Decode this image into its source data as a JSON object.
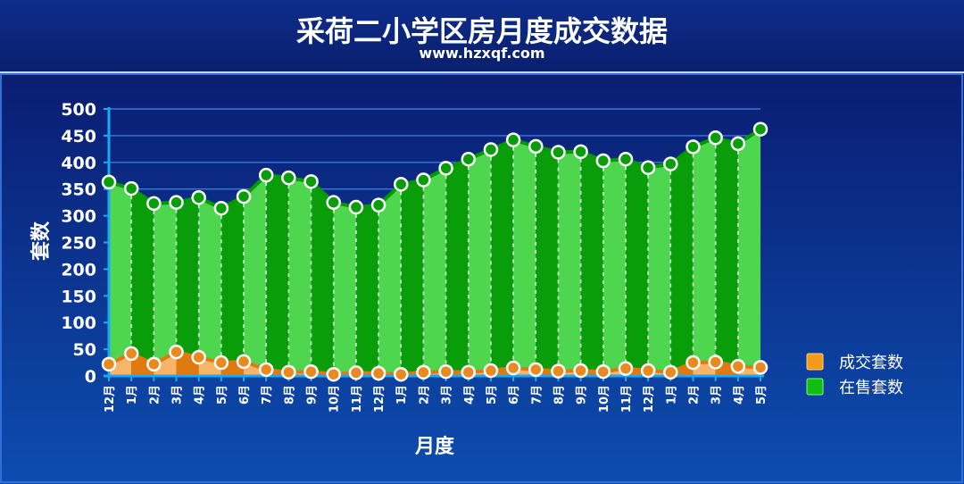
{
  "header": {
    "title": "采荷二小学区房月度成交数据",
    "subtitle": "www.hzxqf.com"
  },
  "colors": {
    "panel_top": "#0a2176",
    "panel_bottom": "#0b47a8",
    "green_light": "#4fd64f",
    "green_dark": "#0a9d0a",
    "green_line": "#009900",
    "orange_light": "#f7b56a",
    "orange_dark": "#e07a10",
    "axis": "#19a9f5",
    "grid": "#3a78d8"
  },
  "chart_data": {
    "type": "area",
    "title": "采荷二小学区房月度成交数据",
    "xlabel": "月度",
    "ylabel": "套数",
    "ylim": [
      0,
      500
    ],
    "yticks": [
      0,
      50,
      100,
      150,
      200,
      250,
      300,
      350,
      400,
      450,
      500
    ],
    "grid": true,
    "legend_position": "right",
    "categories": [
      "12月",
      "1月",
      "2月",
      "3月",
      "4月",
      "5月",
      "6月",
      "7月",
      "8月",
      "9月",
      "10月",
      "11月",
      "12月",
      "1月",
      "2月",
      "3月",
      "4月",
      "5月",
      "6月",
      "7月",
      "8月",
      "9月",
      "10月",
      "11月",
      "12月",
      "1月",
      "2月",
      "3月",
      "4月",
      "5月"
    ],
    "series": [
      {
        "name": "成交套数",
        "color": "#f08c1c",
        "values": [
          22,
          42,
          22,
          45,
          35,
          25,
          27,
          12,
          7,
          8,
          3,
          6,
          5,
          3,
          7,
          8,
          7,
          10,
          15,
          12,
          9,
          10,
          8,
          14,
          10,
          7,
          25,
          26,
          18,
          16
        ]
      },
      {
        "name": "在售套数",
        "color": "#0fbf0f",
        "values": [
          363,
          351,
          323,
          325,
          334,
          314,
          336,
          376,
          371,
          364,
          325,
          316,
          320,
          359,
          367,
          389,
          406,
          424,
          442,
          430,
          419,
          420,
          403,
          406,
          390,
          397,
          429,
          446,
          435,
          462
        ]
      }
    ]
  }
}
